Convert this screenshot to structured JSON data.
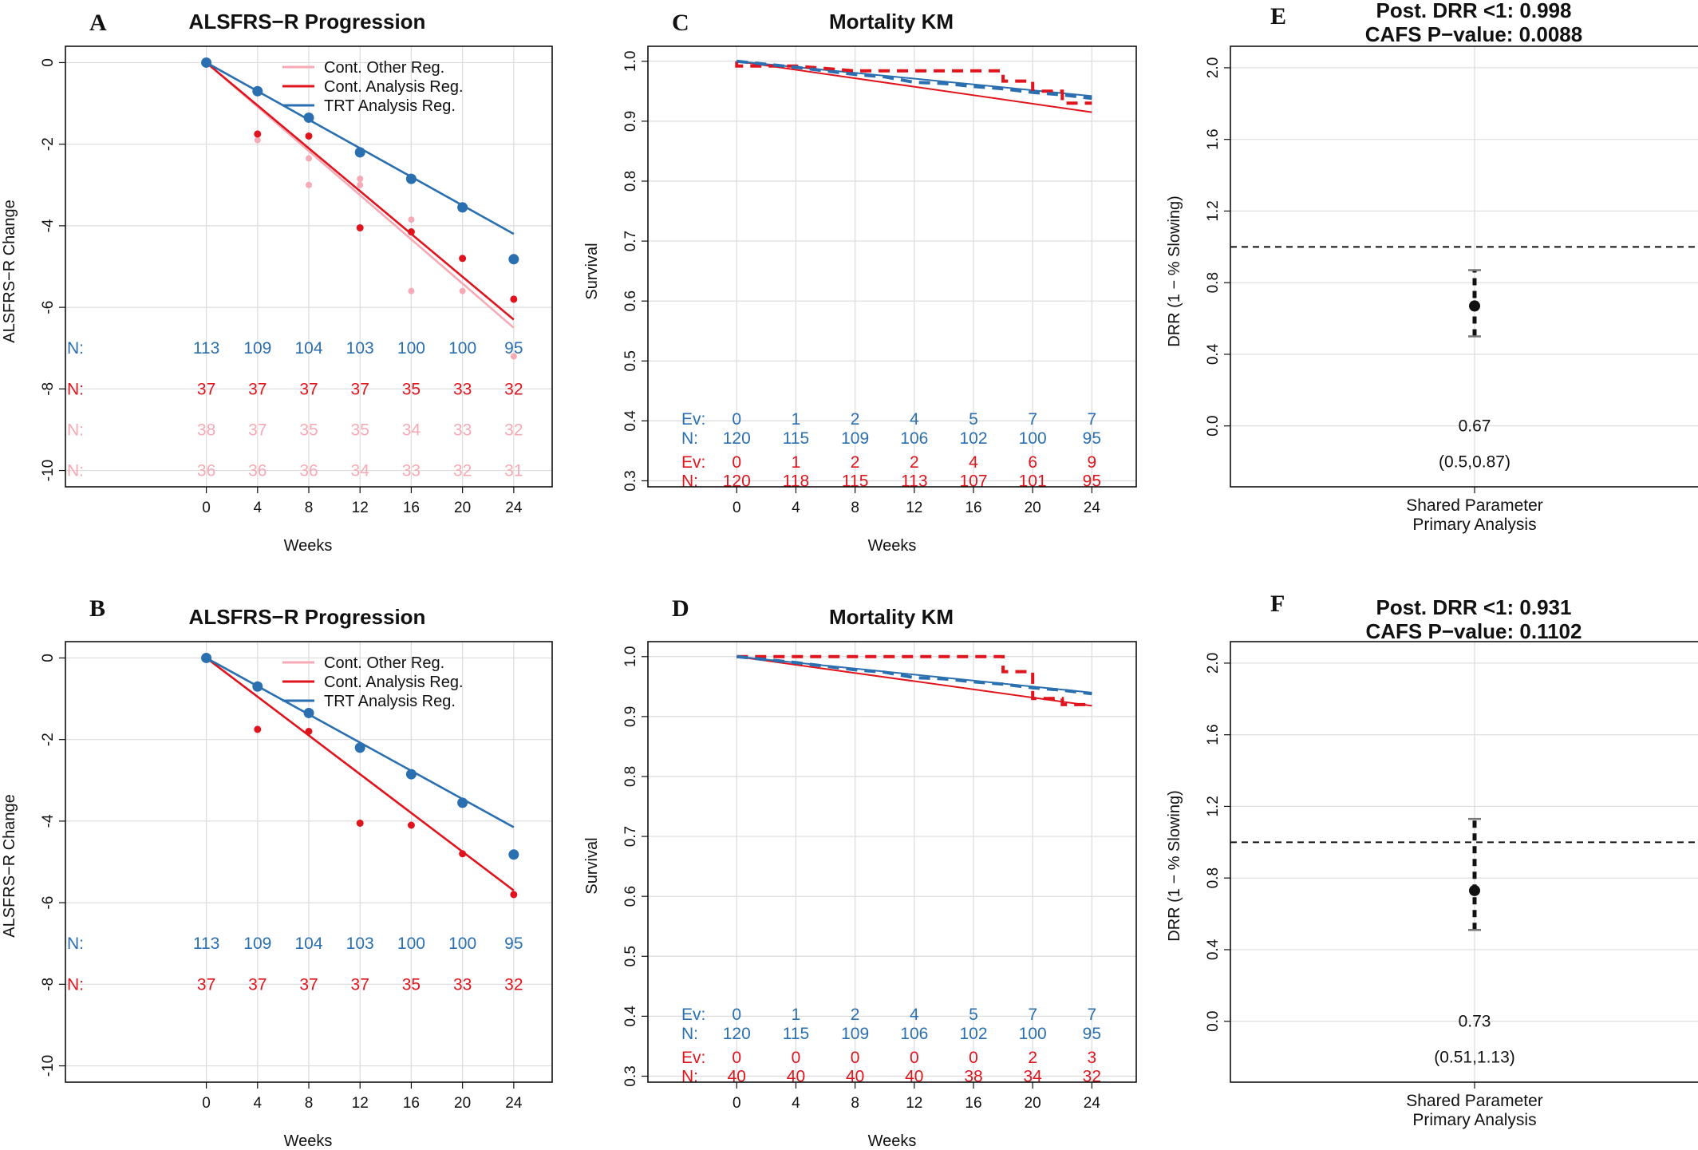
{
  "colors": {
    "trt": "#2a6fb0",
    "cont_analysis": "#e0141c",
    "cont_other": "#f5aab6",
    "text": "#111111",
    "grid": "#dcdcdc"
  },
  "chart_data": [
    {
      "id": "A",
      "panel_label": "A",
      "type": "line",
      "title": "ALSFRS−R Progression",
      "xlabel": "Weeks",
      "ylabel": "ALSFRS−R Change",
      "x": [
        0,
        4,
        8,
        12,
        16,
        20,
        24
      ],
      "xlim": [
        -11,
        27
      ],
      "ylim": [
        -10.4,
        0.4
      ],
      "yticks": [
        0,
        -2,
        -4,
        -6,
        -8,
        -10
      ],
      "grid": true,
      "legend_position": "top-right",
      "legend": [
        {
          "label": "Cont. Other Reg.",
          "color": "#f5aab6"
        },
        {
          "label": "Cont. Analysis Reg.",
          "color": "#e0141c"
        },
        {
          "label": "TRT Analysis Reg.",
          "color": "#2a6fb0"
        }
      ],
      "regression_lines": [
        {
          "key": "cont_other",
          "color": "#f5aab6",
          "x0": 0,
          "y0": 0,
          "x1": 24,
          "y1": -6.5
        },
        {
          "key": "cont_analysis",
          "color": "#e0141c",
          "x0": 0,
          "y0": 0,
          "x1": 24,
          "y1": -6.3
        },
        {
          "key": "trt",
          "color": "#2a6fb0",
          "x0": 0,
          "y0": 0,
          "x1": 24,
          "y1": -4.2
        }
      ],
      "points": [
        {
          "key": "cont_other",
          "color": "#f5aab6",
          "r": 4,
          "values": [
            [
              4,
              -1.9
            ],
            [
              8,
              -2.35
            ],
            [
              8,
              -3.0
            ],
            [
              12,
              -2.85
            ],
            [
              12,
              -3.0
            ],
            [
              16,
              -3.85
            ],
            [
              16,
              -5.6
            ],
            [
              20,
              -5.6
            ],
            [
              24,
              -7.2
            ]
          ]
        },
        {
          "key": "cont_analysis",
          "color": "#e0141c",
          "r": 4.5,
          "values": [
            [
              4,
              -1.75
            ],
            [
              8,
              -1.8
            ],
            [
              12,
              -4.05
            ],
            [
              16,
              -4.15
            ],
            [
              20,
              -4.8
            ],
            [
              24,
              -5.8
            ]
          ]
        },
        {
          "key": "trt",
          "color": "#2a6fb0",
          "r": 6.5,
          "values": [
            [
              0,
              0
            ],
            [
              4,
              -0.7
            ],
            [
              8,
              -1.35
            ],
            [
              12,
              -2.2
            ],
            [
              16,
              -2.85
            ],
            [
              20,
              -3.55
            ],
            [
              24,
              -4.82
            ]
          ]
        }
      ],
      "count_rows": [
        {
          "label": "N:",
          "color": "#2a6fb0",
          "y": -7.0,
          "values": [
            "113",
            "109",
            "104",
            "103",
            "100",
            "100",
            "95"
          ]
        },
        {
          "label": "N:",
          "color": "#e0141c",
          "y": -8.0,
          "values": [
            "37",
            "37",
            "37",
            "37",
            "35",
            "33",
            "32"
          ]
        },
        {
          "label": "N:",
          "color": "#f5aab6",
          "y": -9.0,
          "values": [
            "38",
            "37",
            "35",
            "35",
            "34",
            "33",
            "32"
          ]
        },
        {
          "label": "N:",
          "color": "#f5aab6",
          "y": -10.0,
          "values": [
            "36",
            "36",
            "36",
            "34",
            "33",
            "32",
            "31"
          ]
        }
      ]
    },
    {
      "id": "B",
      "panel_label": "B",
      "type": "line",
      "title": "ALSFRS−R Progression",
      "xlabel": "Weeks",
      "ylabel": "ALSFRS−R Change",
      "x": [
        0,
        4,
        8,
        12,
        16,
        20,
        24
      ],
      "xlim": [
        -11,
        27
      ],
      "ylim": [
        -10.4,
        0.4
      ],
      "yticks": [
        0,
        -2,
        -4,
        -6,
        -8,
        -10
      ],
      "grid": true,
      "legend_position": "top-right",
      "legend": [
        {
          "label": "Cont. Other Reg.",
          "color": "#f5aab6"
        },
        {
          "label": "Cont. Analysis Reg.",
          "color": "#e0141c"
        },
        {
          "label": "TRT Analysis Reg.",
          "color": "#2a6fb0"
        }
      ],
      "regression_lines": [
        {
          "key": "cont_analysis",
          "color": "#e0141c",
          "x0": 0,
          "y0": 0,
          "x1": 24,
          "y1": -5.7
        },
        {
          "key": "trt",
          "color": "#2a6fb0",
          "x0": 0,
          "y0": 0,
          "x1": 24,
          "y1": -4.15
        }
      ],
      "points": [
        {
          "key": "cont_analysis",
          "color": "#e0141c",
          "r": 4.5,
          "values": [
            [
              4,
              -1.75
            ],
            [
              8,
              -1.8
            ],
            [
              12,
              -4.05
            ],
            [
              16,
              -4.1
            ],
            [
              20,
              -4.8
            ],
            [
              24,
              -5.8
            ]
          ]
        },
        {
          "key": "trt",
          "color": "#2a6fb0",
          "r": 6.5,
          "values": [
            [
              0,
              0
            ],
            [
              4,
              -0.7
            ],
            [
              8,
              -1.35
            ],
            [
              12,
              -2.2
            ],
            [
              16,
              -2.85
            ],
            [
              20,
              -3.55
            ],
            [
              24,
              -4.82
            ]
          ]
        }
      ],
      "count_rows": [
        {
          "label": "N:",
          "color": "#2a6fb0",
          "y": -7.0,
          "values": [
            "113",
            "109",
            "104",
            "103",
            "100",
            "100",
            "95"
          ]
        },
        {
          "label": "N:",
          "color": "#e0141c",
          "y": -8.0,
          "values": [
            "37",
            "37",
            "37",
            "37",
            "35",
            "33",
            "32"
          ]
        }
      ]
    },
    {
      "id": "C",
      "panel_label": "C",
      "type": "line",
      "title": "Mortality KM",
      "xlabel": "Weeks",
      "ylabel": "Survival",
      "x": [
        0,
        4,
        8,
        12,
        16,
        20,
        24
      ],
      "xlim": [
        -6,
        27
      ],
      "ylim": [
        0.29,
        1.025
      ],
      "yticks": [
        1.0,
        0.9,
        0.8,
        0.7,
        0.6,
        0.5,
        0.4,
        0.3
      ],
      "grid": true,
      "fitted_lines": [
        {
          "key": "cont_analysis",
          "color": "#e0141c",
          "x0": 0,
          "y0": 1.0,
          "x1": 24,
          "y1": 0.915
        },
        {
          "key": "trt",
          "color": "#2a6fb0",
          "x0": 0,
          "y0": 1.0,
          "x1": 24,
          "y1": 0.942
        }
      ],
      "km_steps": [
        {
          "key": "cont_analysis",
          "color": "#e0141c",
          "points": [
            [
              0,
              1.0
            ],
            [
              0,
              0.992
            ],
            [
              4,
              0.992
            ],
            [
              8,
              0.984
            ],
            [
              12,
              0.984
            ],
            [
              18,
              0.984
            ],
            [
              18,
              0.967
            ],
            [
              20,
              0.967
            ],
            [
              20,
              0.95
            ],
            [
              22,
              0.95
            ],
            [
              22,
              0.93
            ],
            [
              24,
              0.93
            ]
          ]
        },
        {
          "key": "trt",
          "color": "#2a6fb0",
          "points": [
            [
              0,
              1.0
            ],
            [
              2,
              0.995
            ],
            [
              4,
              0.99
            ],
            [
              6,
              0.984
            ],
            [
              8,
              0.978
            ],
            [
              10,
              0.974
            ],
            [
              12,
              0.965
            ],
            [
              14,
              0.963
            ],
            [
              16,
              0.958
            ],
            [
              18,
              0.954
            ],
            [
              20,
              0.948
            ],
            [
              22,
              0.944
            ],
            [
              24,
              0.938
            ]
          ]
        }
      ],
      "count_rows": [
        {
          "label": "Ev:",
          "color": "#2a6fb0",
          "y": 0.4035,
          "values": [
            "0",
            "1",
            "2",
            "4",
            "5",
            "7",
            "7"
          ]
        },
        {
          "label": "N:",
          "color": "#2a6fb0",
          "y": 0.371,
          "values": [
            "120",
            "115",
            "109",
            "106",
            "102",
            "100",
            "95"
          ]
        },
        {
          "label": "Ev:",
          "color": "#e0141c",
          "y": 0.3315,
          "values": [
            "0",
            "1",
            "2",
            "2",
            "4",
            "6",
            "9"
          ]
        },
        {
          "label": "N:",
          "color": "#e0141c",
          "y": 0.3,
          "values": [
            "120",
            "118",
            "115",
            "113",
            "107",
            "101",
            "95"
          ]
        }
      ]
    },
    {
      "id": "D",
      "panel_label": "D",
      "type": "line",
      "title": "Mortality KM",
      "xlabel": "Weeks",
      "ylabel": "Survival",
      "x": [
        0,
        4,
        8,
        12,
        16,
        20,
        24
      ],
      "xlim": [
        -6,
        27
      ],
      "ylim": [
        0.29,
        1.025
      ],
      "yticks": [
        1.0,
        0.9,
        0.8,
        0.7,
        0.6,
        0.5,
        0.4,
        0.3
      ],
      "grid": true,
      "fitted_lines": [
        {
          "key": "cont_analysis",
          "color": "#e0141c",
          "x0": 0,
          "y0": 1.0,
          "x1": 24,
          "y1": 0.918
        },
        {
          "key": "trt",
          "color": "#2a6fb0",
          "x0": 0,
          "y0": 1.0,
          "x1": 24,
          "y1": 0.94
        }
      ],
      "km_steps": [
        {
          "key": "cont_analysis",
          "color": "#e0141c",
          "points": [
            [
              0,
              1.0
            ],
            [
              18,
              1.0
            ],
            [
              18,
              0.975
            ],
            [
              20,
              0.975
            ],
            [
              20,
              0.93
            ],
            [
              22,
              0.93
            ],
            [
              22,
              0.92
            ],
            [
              24,
              0.92
            ]
          ]
        },
        {
          "key": "trt",
          "color": "#2a6fb0",
          "points": [
            [
              0,
              1.0
            ],
            [
              2,
              0.995
            ],
            [
              4,
              0.99
            ],
            [
              6,
              0.984
            ],
            [
              8,
              0.978
            ],
            [
              10,
              0.974
            ],
            [
              12,
              0.965
            ],
            [
              14,
              0.963
            ],
            [
              16,
              0.958
            ],
            [
              18,
              0.954
            ],
            [
              20,
              0.948
            ],
            [
              22,
              0.944
            ],
            [
              24,
              0.938
            ]
          ]
        }
      ],
      "count_rows": [
        {
          "label": "Ev:",
          "color": "#2a6fb0",
          "y": 0.4035,
          "values": [
            "0",
            "1",
            "2",
            "4",
            "5",
            "7",
            "7"
          ]
        },
        {
          "label": "N:",
          "color": "#2a6fb0",
          "y": 0.371,
          "values": [
            "120",
            "115",
            "109",
            "106",
            "102",
            "100",
            "95"
          ]
        },
        {
          "label": "Ev:",
          "color": "#e0141c",
          "y": 0.3315,
          "values": [
            "0",
            "0",
            "0",
            "0",
            "0",
            "2",
            "3"
          ]
        },
        {
          "label": "N:",
          "color": "#e0141c",
          "y": 0.3,
          "values": [
            "40",
            "40",
            "40",
            "40",
            "38",
            "34",
            "32"
          ]
        }
      ]
    },
    {
      "id": "E",
      "panel_label": "E",
      "type": "scatter",
      "title": "Post. DRR <1: 0.998",
      "subtitle": "CAFS P−value: 0.0088",
      "ylabel": "DRR (1 − % Slowing)",
      "category": "Shared Parameter",
      "category_line2": "Primary Analysis",
      "xlim": [
        0,
        1
      ],
      "ylim": [
        -0.34,
        2.12
      ],
      "yticks": [
        0.0,
        0.4,
        0.8,
        1.2,
        1.6,
        2.0
      ],
      "reference_line": 1.0,
      "grid": true,
      "estimate": 0.67,
      "ci_low": 0.5,
      "ci_high": 0.87,
      "estimate_label": "0.67",
      "ci_label": "(0.5,0.87)",
      "estimate_label_y": 0.0,
      "ci_label_y": -0.2
    },
    {
      "id": "F",
      "panel_label": "F",
      "type": "scatter",
      "title": "Post. DRR <1: 0.931",
      "subtitle": "CAFS P−value: 0.1102",
      "ylabel": "DRR (1 − % Slowing)",
      "category": "Shared Parameter",
      "category_line2": "Primary Analysis",
      "xlim": [
        0,
        1
      ],
      "ylim": [
        -0.34,
        2.12
      ],
      "yticks": [
        0.0,
        0.4,
        0.8,
        1.2,
        1.6,
        2.0
      ],
      "reference_line": 1.0,
      "grid": true,
      "estimate": 0.73,
      "ci_low": 0.51,
      "ci_high": 1.13,
      "estimate_label": "0.73",
      "ci_label": "(0.51,1.13)",
      "estimate_label_y": 0.0,
      "ci_label_y": -0.2
    }
  ]
}
